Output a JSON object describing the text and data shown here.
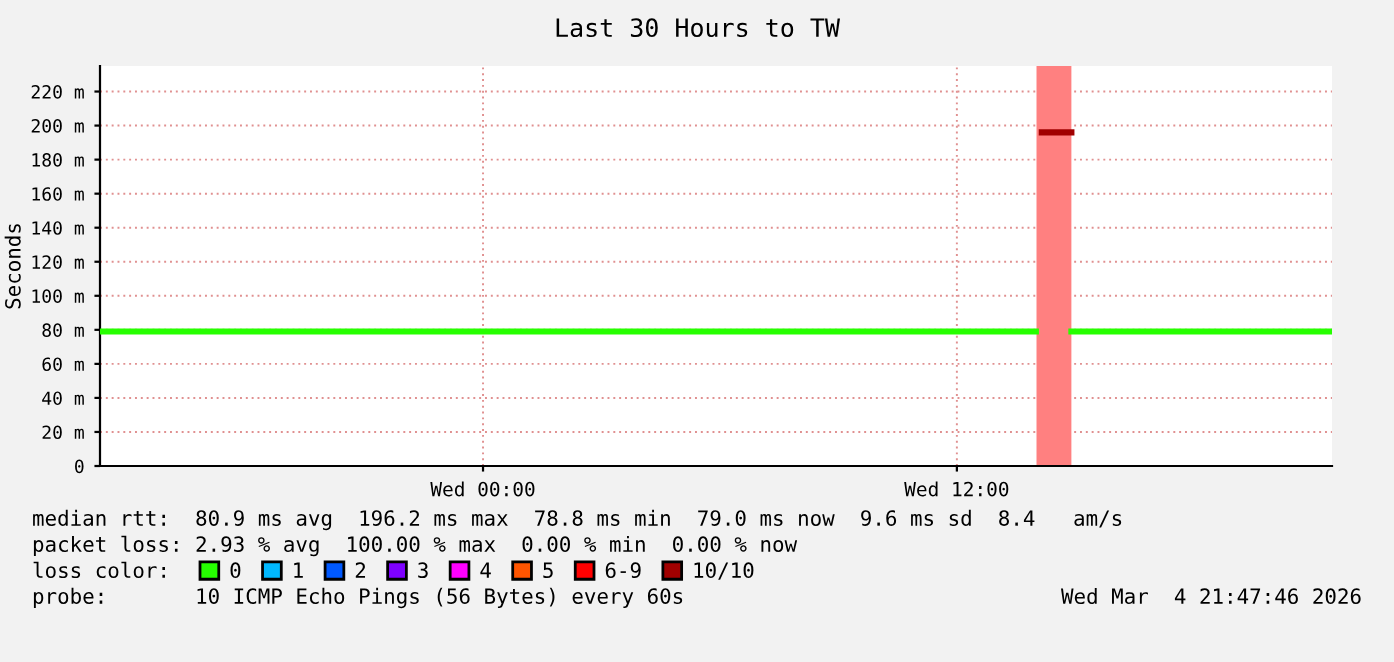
{
  "chart_data": {
    "type": "line",
    "title": "Last 30 Hours to TW",
    "ylabel": "Seconds",
    "xlim": [
      "2026-03-03T14:18",
      "2026-03-04T21:30"
    ],
    "xticks": [
      {
        "value": "2026-03-04T00:00",
        "label": "Wed 00:00"
      },
      {
        "value": "2026-03-04T12:00",
        "label": "Wed 12:00"
      }
    ],
    "ylim": [
      0,
      235
    ],
    "yticks": [
      0,
      {
        "value": 20,
        "label": "20 m"
      },
      {
        "value": 40,
        "label": "40 m"
      },
      {
        "value": 60,
        "label": "60 m"
      },
      {
        "value": 80,
        "label": "80 m"
      },
      {
        "value": 100,
        "label": "100 m"
      },
      {
        "value": 120,
        "label": "120 m"
      },
      {
        "value": 140,
        "label": "140 m"
      },
      {
        "value": 160,
        "label": "160 m"
      },
      {
        "value": 180,
        "label": "180 m"
      },
      {
        "value": 200,
        "label": "200 m"
      },
      {
        "value": 220,
        "label": "220 m"
      }
    ],
    "grid": true,
    "legend": "bottom",
    "legend_title": "loss color:",
    "series": [
      {
        "name": "0",
        "color": "#26ff00",
        "x": [
          "2026-03-03T14:18",
          "2026-03-04T14:00",
          "2026-03-04T14:01",
          "2026-03-04T14:54",
          "2026-03-04T21:30"
        ],
        "values": [
          79,
          79,
          null,
          79,
          79
        ]
      },
      {
        "name": "1",
        "color": "#00b8ff"
      },
      {
        "name": "2",
        "color": "#0059ff"
      },
      {
        "name": "3",
        "color": "#7e00ff"
      },
      {
        "name": "4",
        "color": "#ff00ff"
      },
      {
        "name": "5",
        "color": "#ff5500"
      },
      {
        "name": "6-9",
        "color": "#ff0000"
      },
      {
        "name": "10/10",
        "color": "#a10000",
        "x": [
          "2026-03-04T14:09",
          "2026-03-04T14:54"
        ],
        "values": [
          196,
          196
        ]
      }
    ],
    "bands": [
      {
        "axis": "x",
        "from": "2026-03-04T14:01",
        "to": "2026-03-04T14:54",
        "color": "#ff8080"
      }
    ],
    "annotations": [
      "median rtt:  80.9 ms avg  196.2 ms max  78.8 ms min  79.0 ms now  9.6 ms sd  8.4   am/s",
      "packet loss: 2.93 % avg  100.00 % max  0.00 % min  0.00 % now",
      "probe:       10 ICMP Echo Pings (56 Bytes) every 60s",
      "Wed Mar  4 21:47:46 2026"
    ]
  }
}
